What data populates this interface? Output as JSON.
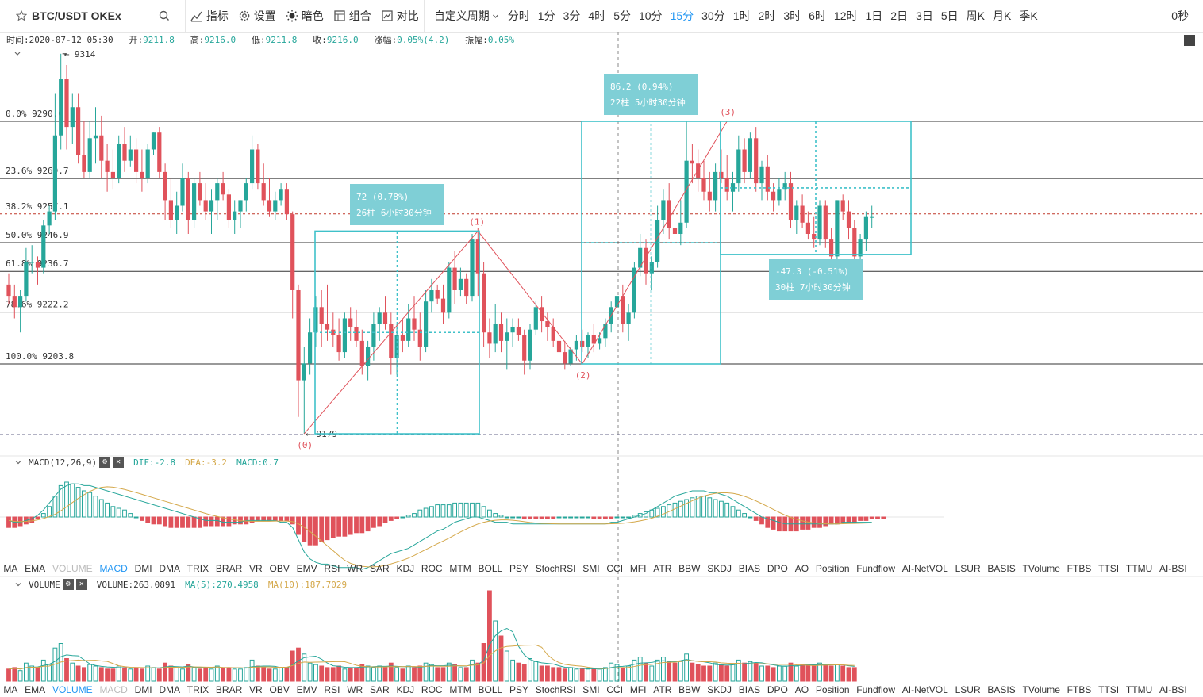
{
  "toolbar": {
    "symbol": "BTC/USDT OKEx",
    "indicators_label": "指标",
    "settings_label": "设置",
    "dark_label": "暗色",
    "combo_label": "组合",
    "compare_label": "对比",
    "custom_period_label": "自定义周期",
    "periods": [
      "分时",
      "1分",
      "3分",
      "4时",
      "5分",
      "10分",
      "15分",
      "30分",
      "1时",
      "2时",
      "3时",
      "6时",
      "12时",
      "1日",
      "2日",
      "3日",
      "5日",
      "周K",
      "月K",
      "季K"
    ],
    "active_period": "15分",
    "countdown": "0秒"
  },
  "ohlc": {
    "time_label": "时间:",
    "time": "2020-07-12 05:30",
    "open_label": "开:",
    "open": "9211.8",
    "high_label": "高:",
    "high": "9216.0",
    "low_label": "低:",
    "low": "9211.8",
    "close_label": "收:",
    "close": "9216.0",
    "change_label": "涨幅:",
    "change": "0.05%(4.2)",
    "amp_label": "振幅:",
    "amp": "0.05%"
  },
  "colors": {
    "up": "#26a69a",
    "down": "#e0525b",
    "accent": "#2196f3",
    "fib": "#333333",
    "measure": "#3fc1c9"
  },
  "fib_levels": [
    {
      "label": "0.0% 9290.0",
      "price": 9290.0
    },
    {
      "label": "23.6% 9269.7",
      "price": 9269.7
    },
    {
      "label": "38.2% 9257.1",
      "price": 9257.1
    },
    {
      "label": "50.0% 9246.9",
      "price": 9246.9
    },
    {
      "label": "61.8% 9236.7",
      "price": 9236.7
    },
    {
      "label": "78.6% 9222.2",
      "price": 9222.2
    },
    {
      "label": "100.0% 9203.8",
      "price": 9203.8
    }
  ],
  "price_marks": {
    "high": "9314",
    "low": "9179"
  },
  "wave_points": [
    "(0)",
    "(1)",
    "(2)",
    "(3)"
  ],
  "measures": [
    {
      "line1": "72 (0.78%)",
      "line2": "26柱 6小时30分钟"
    },
    {
      "line1": "86.2 (0.94%)",
      "line2": "22柱 5小时30分钟"
    },
    {
      "line1": "-47.3 (-0.51%)",
      "line2": "30柱 7小时30分钟"
    }
  ],
  "macd": {
    "title": "MACD(12,26,9)",
    "dif": "DIF:-2.8",
    "dea": "DEA:-3.2",
    "macd": "MACD:0.7",
    "dif_color": "#26a69a",
    "dea_color": "#d4a84a"
  },
  "volume": {
    "title": "VOLUME",
    "value": "VOLUME:263.0891",
    "ma5": "MA(5):270.4958",
    "ma10": "MA(10):187.7029"
  },
  "indicator_bar_1": {
    "items": [
      "MA",
      "EMA",
      "VOLUME",
      "MACD",
      "DMI",
      "DMA",
      "TRIX",
      "BRAR",
      "VR",
      "OBV",
      "EMV",
      "RSI",
      "WR",
      "SAR",
      "KDJ",
      "ROC",
      "MTM",
      "BOLL",
      "PSY",
      "StochRSI",
      "SMI",
      "CCI",
      "MFI",
      "ATR",
      "BBW",
      "SKDJ",
      "BIAS",
      "DPO",
      "AO",
      "Position",
      "Fundflow",
      "AI-NetVOL",
      "LSUR",
      "BASIS",
      "TVolume",
      "FTBS",
      "TTSI",
      "TTMU",
      "AI-BSI"
    ],
    "on": [
      "MACD"
    ],
    "off": [
      "VOLUME"
    ]
  },
  "indicator_bar_2": {
    "items": [
      "MA",
      "EMA",
      "VOLUME",
      "MACD",
      "DMI",
      "DMA",
      "TRIX",
      "BRAR",
      "VR",
      "OBV",
      "EMV",
      "RSI",
      "WR",
      "SAR",
      "KDJ",
      "ROC",
      "MTM",
      "BOLL",
      "PSY",
      "StochRSI",
      "SMI",
      "CCI",
      "MFI",
      "ATR",
      "BBW",
      "SKDJ",
      "BIAS",
      "DPO",
      "AO",
      "Position",
      "Fundflow",
      "AI-NetVOL",
      "LSUR",
      "BASIS",
      "TVolume",
      "FTBS",
      "TTSI",
      "TTMU",
      "AI-BSI"
    ],
    "on": [
      "VOLUME"
    ],
    "off": [
      "MACD"
    ]
  },
  "candles": [
    [
      9232,
      9236,
      9225,
      9228
    ],
    [
      9228,
      9232,
      9220,
      9224
    ],
    [
      9224,
      9230,
      9215,
      9228
    ],
    [
      9228,
      9245,
      9226,
      9240
    ],
    [
      9240,
      9246,
      9236,
      9240
    ],
    [
      9240,
      9242,
      9232,
      9238
    ],
    [
      9238,
      9255,
      9236,
      9253
    ],
    [
      9253,
      9260,
      9250,
      9258
    ],
    [
      9258,
      9300,
      9255,
      9285
    ],
    [
      9285,
      9314,
      9280,
      9305
    ],
    [
      9305,
      9310,
      9280,
      9288
    ],
    [
      9288,
      9300,
      9282,
      9295
    ],
    [
      9295,
      9300,
      9275,
      9278
    ],
    [
      9278,
      9290,
      9270,
      9272
    ],
    [
      9272,
      9290,
      9270,
      9284
    ],
    [
      9284,
      9295,
      9275,
      9285
    ],
    [
      9285,
      9292,
      9270,
      9276
    ],
    [
      9276,
      9282,
      9265,
      9272
    ],
    [
      9272,
      9280,
      9266,
      9270
    ],
    [
      9270,
      9285,
      9268,
      9282
    ],
    [
      9282,
      9288,
      9272,
      9276
    ],
    [
      9276,
      9285,
      9274,
      9280
    ],
    [
      9280,
      9284,
      9268,
      9272
    ],
    [
      9272,
      9280,
      9265,
      9270
    ],
    [
      9270,
      9282,
      9268,
      9280
    ],
    [
      9280,
      9286,
      9278,
      9286
    ],
    [
      9286,
      9288,
      9270,
      9272
    ],
    [
      9272,
      9275,
      9255,
      9262
    ],
    [
      9262,
      9270,
      9252,
      9255
    ],
    [
      9255,
      9265,
      9250,
      9260
    ],
    [
      9260,
      9275,
      9258,
      9270
    ],
    [
      9270,
      9272,
      9250,
      9255
    ],
    [
      9255,
      9270,
      9252,
      9268
    ],
    [
      9268,
      9272,
      9260,
      9262
    ],
    [
      9262,
      9268,
      9255,
      9258
    ],
    [
      9258,
      9266,
      9250,
      9262
    ],
    [
      9262,
      9270,
      9255,
      9268
    ],
    [
      9268,
      9272,
      9262,
      9264
    ],
    [
      9264,
      9266,
      9252,
      9255
    ],
    [
      9255,
      9262,
      9250,
      9258
    ],
    [
      9258,
      9262,
      9252,
      9262
    ],
    [
      9262,
      9270,
      9258,
      9268
    ],
    [
      9268,
      9285,
      9266,
      9280
    ],
    [
      9280,
      9282,
      9266,
      9268
    ],
    [
      9268,
      9275,
      9260,
      9262
    ],
    [
      9262,
      9270,
      9256,
      9258
    ],
    [
      9258,
      9265,
      9255,
      9262
    ],
    [
      9262,
      9268,
      9260,
      9266
    ],
    [
      9266,
      9268,
      9255,
      9257
    ],
    [
      9257,
      9258,
      9220,
      9230
    ],
    [
      9230,
      9232,
      9185,
      9198
    ],
    [
      9198,
      9210,
      9179,
      9204
    ],
    [
      9204,
      9220,
      9200,
      9215
    ],
    [
      9215,
      9228,
      9210,
      9224
    ],
    [
      9224,
      9230,
      9210,
      9218
    ],
    [
      9218,
      9232,
      9212,
      9216
    ],
    [
      9216,
      9222,
      9210,
      9214
    ],
    [
      9214,
      9220,
      9205,
      9208
    ],
    [
      9208,
      9222,
      9206,
      9220
    ],
    [
      9220,
      9224,
      9212,
      9217
    ],
    [
      9217,
      9223,
      9210,
      9212
    ],
    [
      9212,
      9216,
      9200,
      9203
    ],
    [
      9203,
      9212,
      9198,
      9210
    ],
    [
      9210,
      9222,
      9205,
      9218
    ],
    [
      9218,
      9224,
      9212,
      9222
    ],
    [
      9222,
      9228,
      9216,
      9218
    ],
    [
      9218,
      9222,
      9200,
      9206
    ],
    [
      9206,
      9218,
      9200,
      9214
    ],
    [
      9214,
      9220,
      9208,
      9212
    ],
    [
      9212,
      9225,
      9210,
      9220
    ],
    [
      9220,
      9228,
      9212,
      9216
    ],
    [
      9216,
      9222,
      9205,
      9210
    ],
    [
      9210,
      9230,
      9208,
      9226
    ],
    [
      9226,
      9234,
      9222,
      9230
    ],
    [
      9230,
      9232,
      9225,
      9227
    ],
    [
      9227,
      9232,
      9218,
      9222
    ],
    [
      9222,
      9240,
      9220,
      9238
    ],
    [
      9238,
      9244,
      9225,
      9230
    ],
    [
      9230,
      9238,
      9228,
      9234
    ],
    [
      9234,
      9236,
      9225,
      9228
    ],
    [
      9228,
      9250,
      9226,
      9248
    ],
    [
      9248,
      9252,
      9228,
      9236
    ],
    [
      9236,
      9240,
      9210,
      9215
    ],
    [
      9215,
      9220,
      9206,
      9211
    ],
    [
      9211,
      9225,
      9208,
      9218
    ],
    [
      9218,
      9222,
      9208,
      9212
    ],
    [
      9212,
      9220,
      9202,
      9215
    ],
    [
      9215,
      9220,
      9210,
      9217
    ],
    [
      9217,
      9220,
      9212,
      9214
    ],
    [
      9214,
      9216,
      9200,
      9205
    ],
    [
      9205,
      9218,
      9202,
      9216
    ],
    [
      9216,
      9226,
      9214,
      9224
    ],
    [
      9224,
      9228,
      9215,
      9219
    ],
    [
      9219,
      9222,
      9212,
      9217
    ],
    [
      9217,
      9220,
      9210,
      9212
    ],
    [
      9212,
      9216,
      9205,
      9208
    ],
    [
      9208,
      9212,
      9202,
      9204
    ],
    [
      9204,
      9210,
      9203,
      9209
    ],
    [
      9209,
      9214,
      9205,
      9212
    ],
    [
      9212,
      9216,
      9208,
      9210
    ],
    [
      9210,
      9215,
      9206,
      9214
    ],
    [
      9214,
      9218,
      9208,
      9211
    ],
    [
      9211,
      9215,
      9209,
      9213
    ],
    [
      9213,
      9220,
      9210,
      9218
    ],
    [
      9218,
      9226,
      9215,
      9224
    ],
    [
      9224,
      9230,
      9220,
      9228
    ],
    [
      9228,
      9232,
      9215,
      9218
    ],
    [
      9218,
      9225,
      9212,
      9222
    ],
    [
      9222,
      9240,
      9220,
      9238
    ],
    [
      9238,
      9250,
      9235,
      9245
    ],
    [
      9245,
      9248,
      9232,
      9236
    ],
    [
      9236,
      9242,
      9230,
      9240
    ],
    [
      9240,
      9260,
      9238,
      9255
    ],
    [
      9255,
      9266,
      9250,
      9262
    ],
    [
      9262,
      9268,
      9248,
      9252
    ],
    [
      9252,
      9258,
      9244,
      9250
    ],
    [
      9250,
      9262,
      9246,
      9254
    ],
    [
      9254,
      9290,
      9252,
      9276
    ],
    [
      9276,
      9282,
      9268,
      9275
    ],
    [
      9275,
      9280,
      9265,
      9270
    ],
    [
      9270,
      9276,
      9262,
      9265
    ],
    [
      9265,
      9272,
      9258,
      9262
    ],
    [
      9262,
      9275,
      9258,
      9272
    ],
    [
      9272,
      9280,
      9268,
      9270
    ],
    [
      9270,
      9278,
      9262,
      9265
    ],
    [
      9265,
      9272,
      9258,
      9268
    ],
    [
      9268,
      9285,
      9265,
      9280
    ],
    [
      9280,
      9284,
      9268,
      9272
    ],
    [
      9272,
      9286,
      9270,
      9284
    ],
    [
      9284,
      9288,
      9265,
      9268
    ],
    [
      9268,
      9276,
      9262,
      9274
    ],
    [
      9274,
      9278,
      9262,
      9265
    ],
    [
      9265,
      9268,
      9258,
      9262
    ],
    [
      9262,
      9270,
      9260,
      9266
    ],
    [
      9266,
      9272,
      9262,
      9268
    ],
    [
      9268,
      9272,
      9252,
      9255
    ],
    [
      9255,
      9262,
      9250,
      9260
    ],
    [
      9260,
      9264,
      9252,
      9254
    ],
    [
      9254,
      9258,
      9248,
      9250
    ],
    [
      9250,
      9256,
      9245,
      9248
    ],
    [
      9248,
      9262,
      9246,
      9260
    ],
    [
      9260,
      9262,
      9245,
      9248
    ],
    [
      9248,
      9252,
      9240,
      9242
    ],
    [
      9242,
      9262,
      9240,
      9262
    ],
    [
      9262,
      9264,
      9255,
      9258
    ],
    [
      9258,
      9262,
      9248,
      9252
    ],
    [
      9252,
      9255,
      9238,
      9242
    ],
    [
      9242,
      9250,
      9236,
      9248
    ],
    [
      9248,
      9258,
      9244,
      9256
    ],
    [
      9256,
      9260,
      9252,
      9256
    ]
  ],
  "volumes": [
    8,
    9,
    7,
    12,
    10,
    9,
    14,
    11,
    22,
    25,
    15,
    12,
    10,
    9,
    11,
    10,
    9,
    8,
    8,
    10,
    9,
    8,
    9,
    8,
    10,
    9,
    8,
    12,
    10,
    9,
    8,
    11,
    9,
    8,
    9,
    8,
    10,
    9,
    9,
    8,
    8,
    9,
    14,
    10,
    9,
    8,
    8,
    9,
    9,
    20,
    22,
    18,
    12,
    11,
    10,
    9,
    9,
    10,
    8,
    9,
    9,
    11,
    10,
    9,
    10,
    9,
    12,
    9,
    8,
    10,
    9,
    10,
    12,
    11,
    9,
    9,
    12,
    11,
    9,
    9,
    14,
    12,
    25,
    60,
    40,
    30,
    20,
    14,
    12,
    11,
    15,
    13,
    10,
    10,
    9,
    9,
    8,
    9,
    8,
    8,
    8,
    8,
    8,
    9,
    12,
    11,
    9,
    10,
    14,
    16,
    12,
    10,
    14,
    16,
    13,
    12,
    13,
    18,
    12,
    11,
    10,
    10,
    12,
    11,
    10,
    11,
    14,
    12,
    13,
    12,
    10,
    10,
    9,
    10,
    10,
    12,
    10,
    11,
    11,
    10,
    12,
    11,
    10,
    11,
    10,
    9,
    9
  ],
  "macd_hist": [
    -6,
    -6,
    -5,
    -4,
    -3,
    -1,
    2,
    6,
    12,
    18,
    20,
    19,
    17,
    15,
    14,
    12,
    10,
    8,
    6,
    5,
    4,
    2,
    0,
    -2,
    -3,
    -4,
    -4,
    -5,
    -6,
    -6,
    -6,
    -6,
    -6,
    -6,
    -5,
    -5,
    -5,
    -5,
    -5,
    -4,
    -4,
    -4,
    -3,
    -2,
    -2,
    -2,
    -2,
    -2,
    -2,
    -4,
    -10,
    -14,
    -16,
    -16,
    -14,
    -13,
    -12,
    -11,
    -11,
    -10,
    -9,
    -9,
    -8,
    -6,
    -5,
    -3,
    -2,
    -1,
    0,
    1,
    2,
    4,
    5,
    6,
    7,
    7,
    7,
    8,
    8,
    8,
    8,
    8,
    6,
    4,
    2,
    1,
    0,
    0,
    0,
    -1,
    -1,
    -1,
    -1,
    -1,
    -1,
    0,
    0,
    0,
    0,
    0,
    0,
    -1,
    -1,
    -1,
    -1,
    0,
    0,
    0,
    1,
    2,
    3,
    4,
    5,
    6,
    7,
    8,
    9,
    10,
    11,
    12,
    12,
    11,
    10,
    9,
    8,
    6,
    4,
    2,
    0,
    -2,
    -4,
    -6,
    -7,
    -8,
    -8,
    -8,
    -8,
    -7,
    -7,
    -6,
    -6,
    -5,
    -4,
    -4,
    -3,
    -3,
    -3,
    -2,
    -2,
    -1,
    -1,
    -1
  ],
  "macd_dif": [
    -2,
    -3,
    -3,
    -2,
    -1,
    1,
    4,
    8,
    12,
    16,
    18,
    19,
    19,
    18,
    18,
    17,
    16,
    15,
    14,
    13,
    12,
    11,
    10,
    9,
    8,
    7,
    6,
    5,
    4,
    3,
    2,
    1,
    0,
    -1,
    -2,
    -2,
    -2,
    -3,
    -3,
    -3,
    -3,
    -2,
    -2,
    -2,
    -2,
    -2,
    -2,
    -3,
    -3,
    -6,
    -13,
    -20,
    -24,
    -26,
    -27,
    -27,
    -28,
    -29,
    -29,
    -29,
    -29,
    -30,
    -29,
    -27,
    -25,
    -23,
    -21,
    -20,
    -19,
    -18,
    -16,
    -14,
    -12,
    -10,
    -8,
    -7,
    -5,
    -3,
    -2,
    -1,
    0,
    0,
    -1,
    -2,
    -3,
    -3,
    -3,
    -4,
    -4,
    -4,
    -4,
    -4,
    -4,
    -4,
    -4,
    -4,
    -4,
    -4,
    -4,
    -4,
    -4,
    -4,
    -4,
    -4,
    -3,
    -3,
    -2,
    -1,
    0,
    1,
    2,
    4,
    6,
    8,
    10,
    12,
    13,
    14,
    15,
    15,
    15,
    14,
    14,
    13,
    12,
    10,
    8,
    6,
    4,
    2,
    0,
    -1,
    -2,
    -3,
    -4,
    -4,
    -4,
    -4,
    -4,
    -4,
    -4,
    -4,
    -4,
    -4,
    -3,
    -3,
    -3,
    -3,
    -3,
    -3
  ]
}
